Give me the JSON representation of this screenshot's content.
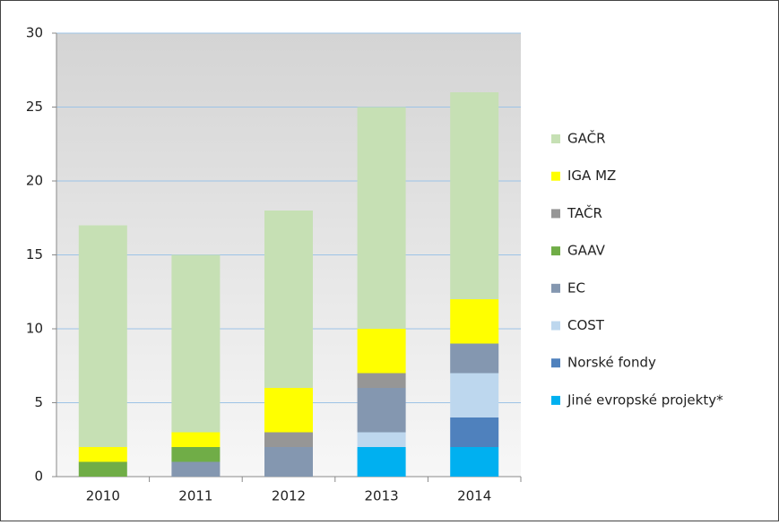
{
  "chart_data": {
    "type": "stacked_bar",
    "categories": [
      "2010",
      "2011",
      "2012",
      "2013",
      "2014"
    ],
    "series": [
      {
        "name": "GAČR",
        "color": "#c6e0b4",
        "values": [
          15,
          12,
          12,
          15,
          14
        ]
      },
      {
        "name": "IGA MZ",
        "color": "#ffff00",
        "values": [
          1,
          1,
          3,
          3,
          3
        ]
      },
      {
        "name": "TAČR",
        "color": "#969696",
        "values": [
          0,
          0,
          1,
          1,
          0
        ]
      },
      {
        "name": "GAAV",
        "color": "#70ad47",
        "values": [
          1,
          1,
          0,
          0,
          0
        ]
      },
      {
        "name": "EC",
        "color": "#8497b0",
        "values": [
          0,
          1,
          2,
          3,
          2
        ]
      },
      {
        "name": "COST",
        "color": "#bdd7ee",
        "values": [
          0,
          0,
          0,
          1,
          3
        ]
      },
      {
        "name": "Norské fondy",
        "color": "#4f81bd",
        "values": [
          0,
          0,
          0,
          0,
          2
        ]
      },
      {
        "name": "Jiné evropské projekty*",
        "color": "#00b0f0",
        "values": [
          0,
          0,
          0,
          2,
          2
        ]
      }
    ],
    "ylim": [
      0,
      30
    ],
    "yticks": [
      0,
      5,
      10,
      15,
      20,
      25,
      30
    ],
    "grid": true,
    "legend": "right"
  }
}
